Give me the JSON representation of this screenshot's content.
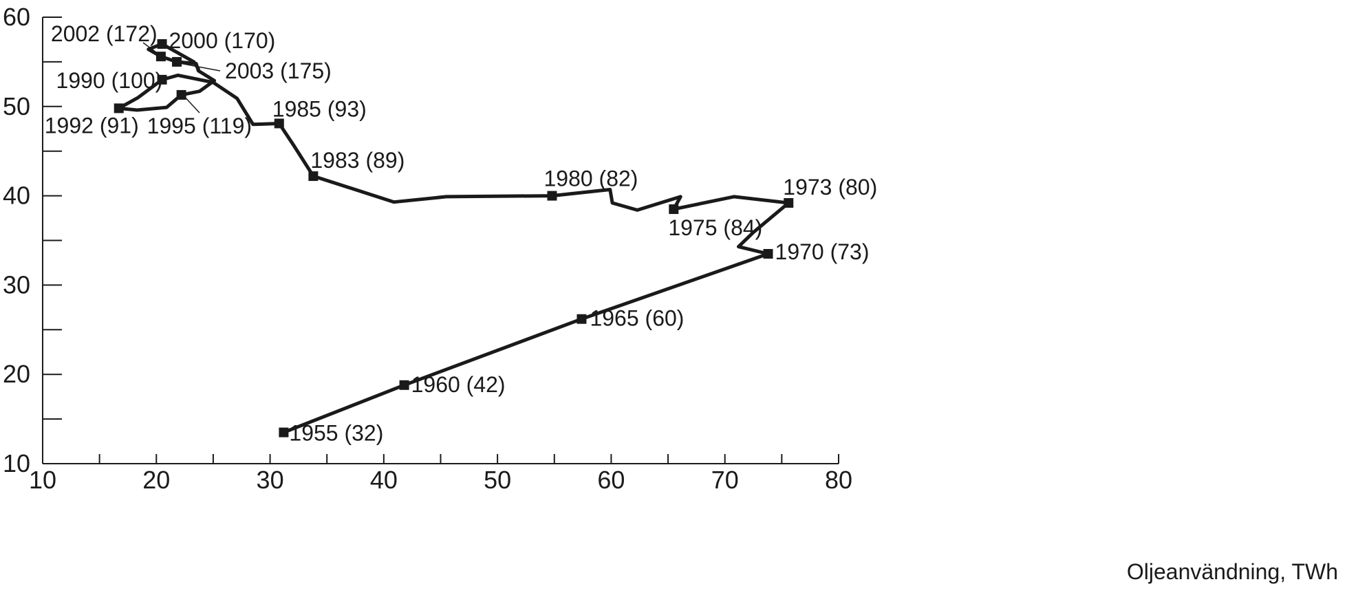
{
  "chart_data": {
    "type": "line",
    "title": "",
    "xlabel": "Oljeanvändning, TWh",
    "ylabel": "",
    "xlim": [
      10,
      80
    ],
    "ylim": [
      10,
      60
    ],
    "x_ticks": [
      10,
      20,
      30,
      40,
      50,
      60,
      70,
      80
    ],
    "y_ticks": [
      10,
      20,
      30,
      40,
      50,
      60
    ],
    "x_tick_labels": [
      "10",
      "20",
      "30",
      "40",
      "50",
      "60",
      "70",
      "80"
    ],
    "y_tick_labels": [
      "10",
      "20",
      "30",
      "40",
      "50",
      "60"
    ],
    "grid": false,
    "line_color": "#1a1a1a",
    "series": [
      {
        "path": [
          [
            31.2,
            13.5
          ],
          [
            41.8,
            18.8
          ],
          [
            57.4,
            26.2
          ],
          [
            73.8,
            33.5
          ],
          [
            71.2,
            34.3
          ],
          [
            72.5,
            35.9
          ],
          [
            75.6,
            39.2
          ],
          [
            70.8,
            39.9
          ],
          [
            65.5,
            38.5
          ],
          [
            66.1,
            39.9
          ],
          [
            62.3,
            38.4
          ],
          [
            60.1,
            39.2
          ],
          [
            59.9,
            40.7
          ],
          [
            54.8,
            40.0
          ],
          [
            45.5,
            39.9
          ],
          [
            40.9,
            39.3
          ],
          [
            33.8,
            42.2
          ],
          [
            32.1,
            45.6
          ],
          [
            30.8,
            48.1
          ],
          [
            28.5,
            48.0
          ],
          [
            27.1,
            50.9
          ],
          [
            25.0,
            52.7
          ],
          [
            21.9,
            53.5
          ],
          [
            20.5,
            53.0
          ],
          [
            18.4,
            51.0
          ],
          [
            16.7,
            49.8
          ],
          [
            18.3,
            49.6
          ],
          [
            20.9,
            49.9
          ],
          [
            22.2,
            51.3
          ],
          [
            23.8,
            51.7
          ],
          [
            25.1,
            52.9
          ],
          [
            23.7,
            54.0
          ],
          [
            23.5,
            54.8
          ],
          [
            21.8,
            55.0
          ],
          [
            20.4,
            55.6
          ],
          [
            19.3,
            56.4
          ],
          [
            20.5,
            57.0
          ],
          [
            23.3,
            55.0
          ],
          [
            23.7,
            54.2
          ]
        ]
      }
    ],
    "points": [
      {
        "x": 31.2,
        "y": 13.5,
        "label": "1955 (32)"
      },
      {
        "x": 41.8,
        "y": 18.8,
        "label": "1960 (42)"
      },
      {
        "x": 57.4,
        "y": 26.2,
        "label": "1965 (60)"
      },
      {
        "x": 73.8,
        "y": 33.5,
        "label": "1970 (73)"
      },
      {
        "x": 75.6,
        "y": 39.2,
        "label": "1973 (80)"
      },
      {
        "x": 65.5,
        "y": 38.5,
        "label": "1975 (84)"
      },
      {
        "x": 54.8,
        "y": 40.0,
        "label": "1980 (82)"
      },
      {
        "x": 33.8,
        "y": 42.2,
        "label": "1983 (89)"
      },
      {
        "x": 30.8,
        "y": 48.1,
        "label": "1985 (93)"
      },
      {
        "x": 20.5,
        "y": 53.0,
        "label": "1990 (100)"
      },
      {
        "x": 16.7,
        "y": 49.8,
        "label": "1992 (91)"
      },
      {
        "x": 22.2,
        "y": 51.3,
        "label": "1995 (119)"
      },
      {
        "x": 20.5,
        "y": 57.0,
        "label": "2000 (170)"
      },
      {
        "x": 20.4,
        "y": 55.6,
        "label": "2002 (172)"
      },
      {
        "x": 21.8,
        "y": 55.0,
        "label": "2003 (175)"
      }
    ]
  }
}
